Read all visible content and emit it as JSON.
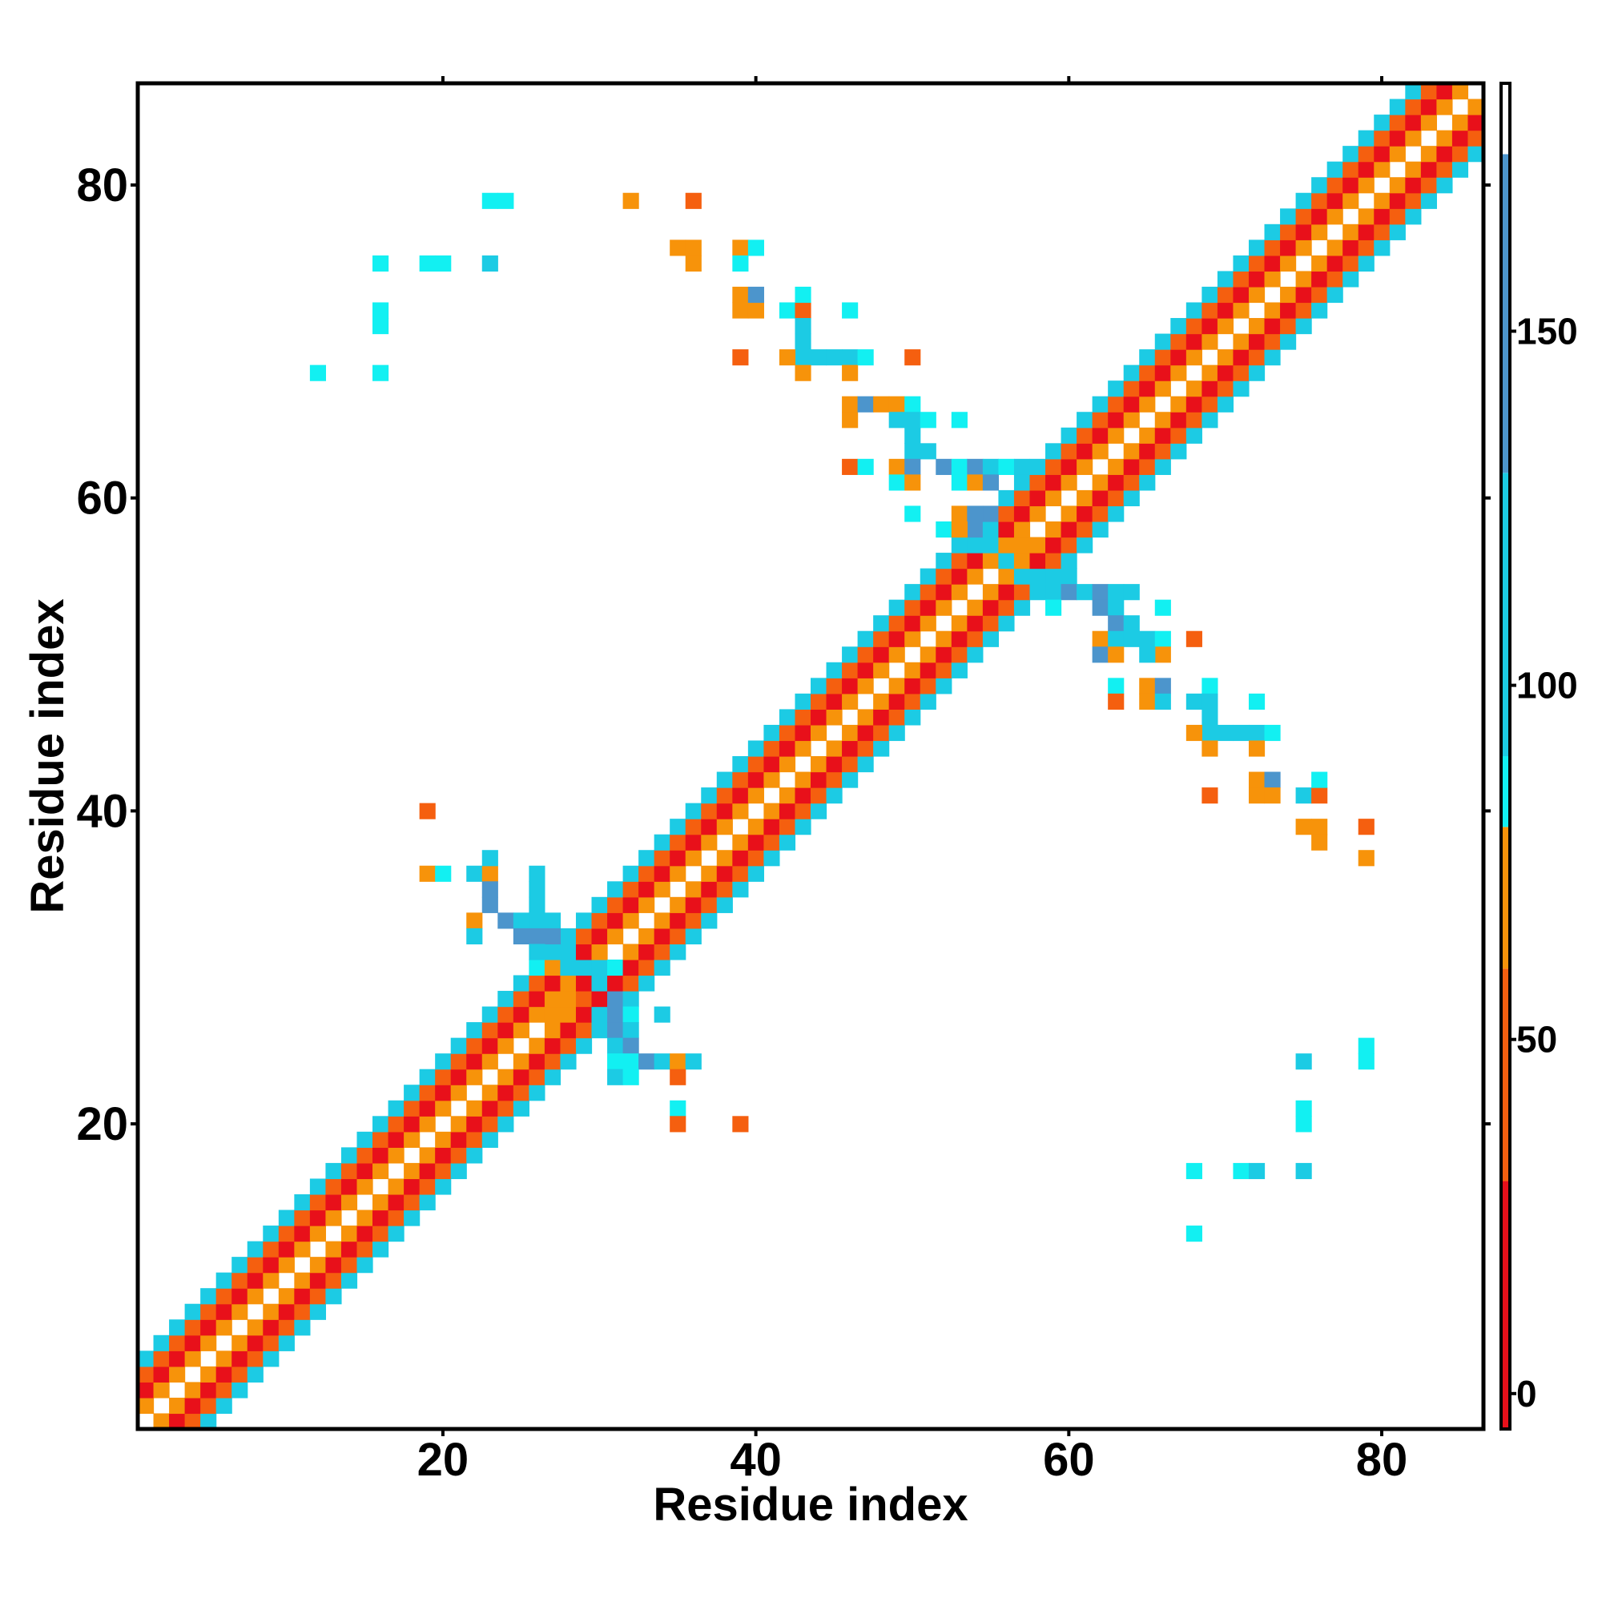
{
  "chart_data": {
    "type": "heatmap",
    "title": "",
    "xlabel": "Residue index",
    "ylabel": "Residue index",
    "xlim": [
      0.5,
      86.5
    ],
    "ylim": [
      0.5,
      86.5
    ],
    "x_ticks": [
      20,
      40,
      60,
      80
    ],
    "y_ticks": [
      20,
      40,
      60,
      80
    ],
    "x_tick_labels": [
      "20",
      "40",
      "60",
      "80"
    ],
    "y_tick_labels": [
      "20",
      "40",
      "60",
      "80"
    ],
    "grid": false,
    "colorbar": {
      "range": [
        -5,
        185
      ],
      "ticks": [
        0,
        50,
        100,
        150
      ],
      "tick_labels": [
        "0",
        "50",
        "100",
        "150"
      ],
      "segments": [
        {
          "from": -5,
          "to": 30,
          "color": "#e8101a"
        },
        {
          "from": 30,
          "to": 60,
          "color": "#f55f0f"
        },
        {
          "from": 60,
          "to": 80,
          "color": "#f7930a"
        },
        {
          "from": 80,
          "to": 90,
          "color": "#12f0f2"
        },
        {
          "from": 90,
          "to": 130,
          "color": "#1ccbe4"
        },
        {
          "from": 130,
          "to": 175,
          "color": "#4c95cc"
        },
        {
          "from": 175,
          "to": 185,
          "color": "#ffffff"
        }
      ]
    },
    "value_colors": {
      "20": "#e8101a",
      "45": "#f55f0f",
      "70": "#f7930a",
      "85": "#12f0f2",
      "110": "#1ccbe4",
      "150": "#4c95cc"
    },
    "main_band": {
      "width": 9,
      "pattern": [
        110,
        45,
        20,
        70,
        0,
        70,
        20,
        45,
        110
      ]
    },
    "off_diagonal_cells": [
      [
        23,
        79,
        85
      ],
      [
        24,
        79,
        85
      ],
      [
        32,
        79,
        70
      ],
      [
        36,
        79,
        45
      ],
      [
        16,
        75,
        85
      ],
      [
        19,
        75,
        85
      ],
      [
        20,
        75,
        85
      ],
      [
        23,
        75,
        110
      ],
      [
        35,
        76,
        70
      ],
      [
        36,
        76,
        70
      ],
      [
        36,
        75,
        70
      ],
      [
        39,
        76,
        70
      ],
      [
        40,
        76,
        85
      ],
      [
        39,
        75,
        85
      ],
      [
        16,
        72,
        85
      ],
      [
        16,
        71,
        85
      ],
      [
        12,
        68,
        85
      ],
      [
        16,
        68,
        85
      ],
      [
        39,
        73,
        70
      ],
      [
        39,
        72,
        70
      ],
      [
        40,
        72,
        70
      ],
      [
        40,
        73,
        150
      ],
      [
        42,
        72,
        85
      ],
      [
        43,
        72,
        45
      ],
      [
        43,
        73,
        85
      ],
      [
        46,
        72,
        85
      ],
      [
        43,
        71,
        110
      ],
      [
        43,
        70,
        110
      ],
      [
        43,
        69,
        110
      ],
      [
        44,
        69,
        110
      ],
      [
        45,
        69,
        110
      ],
      [
        46,
        69,
        110
      ],
      [
        39,
        69,
        45
      ],
      [
        42,
        69,
        70
      ],
      [
        43,
        68,
        70
      ],
      [
        46,
        68,
        70
      ],
      [
        47,
        69,
        85
      ],
      [
        50,
        69,
        45
      ],
      [
        46,
        66,
        70
      ],
      [
        46,
        65,
        70
      ],
      [
        47,
        66,
        150
      ],
      [
        48,
        66,
        70
      ],
      [
        49,
        66,
        70
      ],
      [
        50,
        66,
        85
      ],
      [
        49,
        65,
        110
      ],
      [
        50,
        65,
        110
      ],
      [
        51,
        65,
        85
      ],
      [
        53,
        65,
        85
      ],
      [
        50,
        64,
        110
      ],
      [
        50,
        63,
        110
      ],
      [
        51,
        63,
        110
      ],
      [
        52,
        62,
        150
      ],
      [
        53,
        62,
        85
      ],
      [
        54,
        62,
        150
      ],
      [
        55,
        62,
        110
      ],
      [
        56,
        62,
        85
      ],
      [
        57,
        62,
        110
      ],
      [
        46,
        62,
        45
      ],
      [
        47,
        62,
        85
      ],
      [
        49,
        62,
        70
      ],
      [
        50,
        62,
        150
      ],
      [
        49,
        61,
        85
      ],
      [
        50,
        61,
        70
      ],
      [
        53,
        61,
        85
      ],
      [
        54,
        61,
        70
      ],
      [
        55,
        61,
        150
      ],
      [
        50,
        59,
        85
      ],
      [
        52,
        58,
        85
      ],
      [
        53,
        59,
        70
      ],
      [
        54,
        59,
        150
      ],
      [
        55,
        59,
        150
      ],
      [
        53,
        58,
        70
      ],
      [
        54,
        58,
        150
      ],
      [
        55,
        58,
        110
      ],
      [
        54,
        57,
        110
      ],
      [
        55,
        57,
        110
      ],
      [
        56,
        56,
        110
      ],
      [
        57,
        57,
        70
      ],
      [
        57,
        55,
        110
      ],
      [
        58,
        55,
        110
      ],
      [
        59,
        55,
        110
      ],
      [
        60,
        55,
        110
      ],
      [
        59,
        54,
        110
      ],
      [
        60,
        54,
        150
      ],
      [
        61,
        54,
        110
      ],
      [
        62,
        54,
        150
      ],
      [
        63,
        54,
        110
      ],
      [
        64,
        54,
        110
      ],
      [
        62,
        53,
        150
      ],
      [
        63,
        53,
        110
      ],
      [
        63,
        52,
        150
      ],
      [
        64,
        52,
        110
      ],
      [
        66,
        53,
        85
      ],
      [
        68,
        51,
        45
      ],
      [
        59,
        53,
        85
      ],
      [
        62,
        51,
        70
      ],
      [
        63,
        51,
        110
      ],
      [
        64,
        51,
        110
      ],
      [
        65,
        51,
        110
      ],
      [
        66,
        51,
        85
      ],
      [
        62,
        50,
        150
      ],
      [
        63,
        50,
        70
      ],
      [
        66,
        50,
        70
      ],
      [
        65,
        50,
        110
      ],
      [
        63,
        48,
        85
      ],
      [
        63,
        47,
        45
      ],
      [
        65,
        48,
        70
      ],
      [
        65,
        47,
        70
      ],
      [
        66,
        48,
        150
      ],
      [
        66,
        47,
        110
      ],
      [
        69,
        48,
        85
      ],
      [
        68,
        47,
        110
      ],
      [
        69,
        47,
        110
      ],
      [
        72,
        47,
        85
      ],
      [
        69,
        46,
        110
      ],
      [
        69,
        45,
        110
      ],
      [
        70,
        45,
        110
      ],
      [
        71,
        45,
        110
      ],
      [
        72,
        45,
        110
      ],
      [
        73,
        45,
        85
      ],
      [
        68,
        45,
        70
      ],
      [
        69,
        44,
        70
      ],
      [
        72,
        44,
        70
      ],
      [
        69,
        41,
        45
      ],
      [
        72,
        42,
        70
      ],
      [
        72,
        41,
        70
      ],
      [
        73,
        42,
        150
      ],
      [
        73,
        41,
        70
      ],
      [
        75,
        41,
        110
      ],
      [
        76,
        41,
        45
      ],
      [
        76,
        42,
        85
      ],
      [
        75,
        39,
        70
      ],
      [
        76,
        39,
        70
      ],
      [
        76,
        38,
        70
      ],
      [
        79,
        39,
        45
      ],
      [
        79,
        37,
        70
      ],
      [
        19,
        40,
        45
      ],
      [
        19,
        36,
        70
      ],
      [
        20,
        36,
        85
      ],
      [
        22,
        36,
        110
      ],
      [
        23,
        36,
        70
      ],
      [
        23,
        37,
        110
      ],
      [
        26,
        36,
        110
      ],
      [
        23,
        35,
        150
      ],
      [
        23,
        34,
        150
      ],
      [
        22,
        33,
        70
      ],
      [
        22,
        32,
        110
      ],
      [
        24,
        33,
        150
      ],
      [
        25,
        33,
        110
      ],
      [
        26,
        33,
        110
      ],
      [
        27,
        33,
        110
      ],
      [
        26,
        35,
        110
      ],
      [
        26,
        34,
        110
      ],
      [
        25,
        32,
        150
      ],
      [
        26,
        32,
        150
      ],
      [
        27,
        32,
        150
      ],
      [
        26,
        31,
        110
      ],
      [
        27,
        31,
        110
      ],
      [
        28,
        31,
        110
      ],
      [
        26,
        30,
        85
      ],
      [
        27,
        30,
        70
      ],
      [
        28,
        30,
        110
      ],
      [
        29,
        30,
        110
      ],
      [
        31,
        28,
        150
      ],
      [
        31,
        27,
        150
      ],
      [
        31,
        26,
        150
      ],
      [
        30,
        27,
        110
      ],
      [
        32,
        27,
        85
      ],
      [
        32,
        26,
        110
      ],
      [
        34,
        27,
        110
      ],
      [
        31,
        25,
        110
      ],
      [
        32,
        25,
        150
      ],
      [
        31,
        24,
        85
      ],
      [
        32,
        24,
        85
      ],
      [
        33,
        24,
        150
      ],
      [
        34,
        24,
        110
      ],
      [
        35,
        24,
        70
      ],
      [
        36,
        24,
        110
      ],
      [
        31,
        23,
        110
      ],
      [
        32,
        23,
        85
      ],
      [
        35,
        23,
        45
      ],
      [
        35,
        21,
        85
      ],
      [
        35,
        20,
        45
      ],
      [
        39,
        20,
        45
      ],
      [
        75,
        24,
        110
      ],
      [
        79,
        25,
        85
      ],
      [
        79,
        24,
        85
      ],
      [
        75,
        21,
        85
      ],
      [
        75,
        20,
        85
      ],
      [
        68,
        17,
        85
      ],
      [
        71,
        17,
        85
      ],
      [
        72,
        17,
        110
      ],
      [
        75,
        17,
        110
      ],
      [
        68,
        13,
        85
      ],
      [
        27,
        27,
        70
      ],
      [
        28,
        27,
        70
      ],
      [
        28,
        28,
        70
      ],
      [
        29,
        28,
        45
      ],
      [
        29,
        29,
        20
      ],
      [
        30,
        29,
        110
      ],
      [
        30,
        30,
        110
      ],
      [
        31,
        30,
        85
      ]
    ]
  }
}
